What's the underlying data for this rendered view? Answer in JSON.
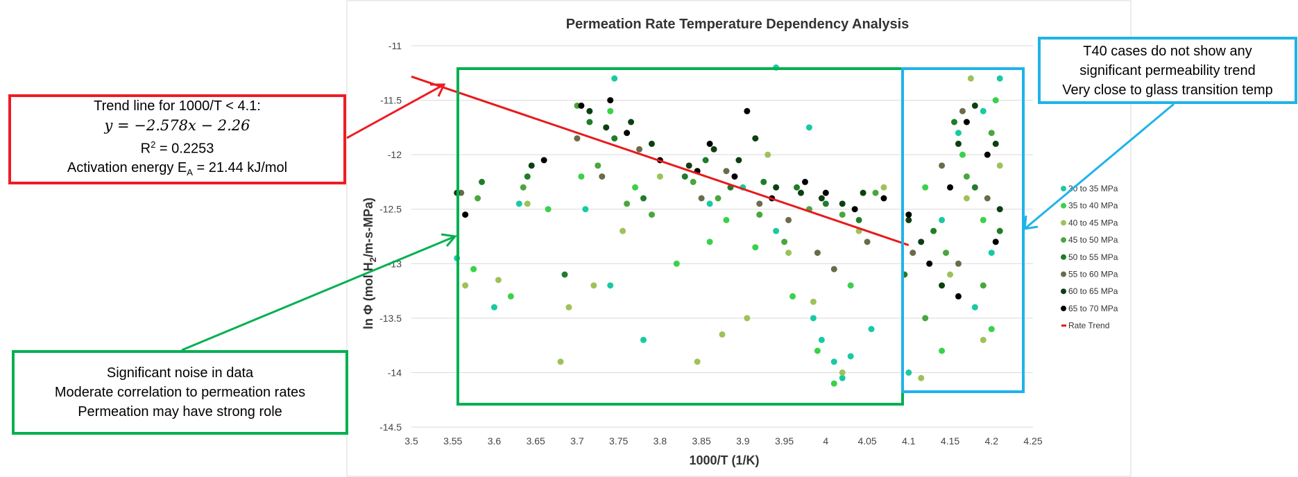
{
  "chart_data": {
    "type": "scatter",
    "title": "Permeation Rate Temperature Dependency Analysis",
    "xlabel": "1000/T (1/K)",
    "ylabel": "ln Φ (mol H2/m-s-MPa)",
    "xlim": [
      3.5,
      4.25
    ],
    "ylim": [
      -14.5,
      -11
    ],
    "x_ticks": [
      "3.5",
      "3.55",
      "3.6",
      "3.65",
      "3.7",
      "3.75",
      "3.8",
      "3.85",
      "3.9",
      "3.95",
      "4",
      "4.05",
      "4.1",
      "4.15",
      "4.2",
      "4.25"
    ],
    "y_ticks": [
      "-11",
      "-11.5",
      "-12",
      "-12.5",
      "-13",
      "-13.5",
      "-14",
      "-14.5"
    ],
    "grid": "horizontal",
    "legend_position": "right",
    "series": [
      {
        "name": "30 to 35 MPa",
        "color": "#19c9a3",
        "points": [
          [
            3.555,
            -12.95
          ],
          [
            3.6,
            -13.4
          ],
          [
            3.63,
            -12.45
          ],
          [
            3.71,
            -12.5
          ],
          [
            3.745,
            -11.3
          ],
          [
            3.74,
            -13.2
          ],
          [
            3.78,
            -13.7
          ],
          [
            3.86,
            -12.45
          ],
          [
            3.9,
            -12.3
          ],
          [
            3.94,
            -12.7
          ],
          [
            3.985,
            -13.5
          ],
          [
            3.995,
            -13.7
          ],
          [
            4.01,
            -13.9
          ],
          [
            4.02,
            -14.05
          ],
          [
            4.03,
            -13.85
          ],
          [
            4.055,
            -13.6
          ],
          [
            4.1,
            -14.0
          ],
          [
            4.14,
            -12.6
          ],
          [
            4.16,
            -11.8
          ],
          [
            4.19,
            -11.6
          ],
          [
            4.2,
            -12.9
          ],
          [
            4.21,
            -11.3
          ],
          [
            4.18,
            -13.4
          ],
          [
            3.98,
            -11.75
          ],
          [
            3.94,
            -11.2
          ]
        ]
      },
      {
        "name": "35 to 40 MPa",
        "color": "#3ad14a",
        "points": [
          [
            3.575,
            -13.05
          ],
          [
            3.62,
            -13.3
          ],
          [
            3.665,
            -12.5
          ],
          [
            3.705,
            -12.2
          ],
          [
            3.74,
            -11.6
          ],
          [
            3.77,
            -12.3
          ],
          [
            3.82,
            -13.0
          ],
          [
            3.86,
            -12.8
          ],
          [
            3.88,
            -12.6
          ],
          [
            3.915,
            -12.85
          ],
          [
            3.96,
            -13.3
          ],
          [
            3.99,
            -13.8
          ],
          [
            4.01,
            -14.1
          ],
          [
            4.03,
            -13.2
          ],
          [
            4.12,
            -12.3
          ],
          [
            4.14,
            -13.8
          ],
          [
            4.165,
            -12.0
          ],
          [
            4.19,
            -12.6
          ],
          [
            4.205,
            -11.5
          ],
          [
            4.2,
            -13.6
          ]
        ]
      },
      {
        "name": "40 to 45 MPa",
        "color": "#9dc25a",
        "points": [
          [
            3.565,
            -13.2
          ],
          [
            3.605,
            -13.15
          ],
          [
            3.64,
            -12.45
          ],
          [
            3.68,
            -13.9
          ],
          [
            3.69,
            -13.4
          ],
          [
            3.72,
            -13.2
          ],
          [
            3.755,
            -12.7
          ],
          [
            3.8,
            -12.2
          ],
          [
            3.845,
            -13.9
          ],
          [
            3.875,
            -13.65
          ],
          [
            3.905,
            -13.5
          ],
          [
            3.93,
            -12.0
          ],
          [
            3.955,
            -12.9
          ],
          [
            3.985,
            -13.35
          ],
          [
            4.02,
            -14.0
          ],
          [
            4.04,
            -12.7
          ],
          [
            4.07,
            -12.3
          ],
          [
            4.115,
            -14.05
          ],
          [
            4.15,
            -13.1
          ],
          [
            4.17,
            -12.4
          ],
          [
            4.19,
            -13.7
          ],
          [
            4.21,
            -12.1
          ],
          [
            4.175,
            -11.3
          ]
        ]
      },
      {
        "name": "45 to 50 MPa",
        "color": "#4aa63e",
        "points": [
          [
            3.58,
            -12.4
          ],
          [
            3.635,
            -12.3
          ],
          [
            3.7,
            -11.55
          ],
          [
            3.725,
            -12.1
          ],
          [
            3.76,
            -12.45
          ],
          [
            3.79,
            -12.55
          ],
          [
            3.84,
            -12.25
          ],
          [
            3.87,
            -12.4
          ],
          [
            3.92,
            -12.55
          ],
          [
            3.95,
            -12.8
          ],
          [
            3.98,
            -12.5
          ],
          [
            4.02,
            -12.55
          ],
          [
            4.06,
            -12.35
          ],
          [
            4.12,
            -13.5
          ],
          [
            4.145,
            -12.9
          ],
          [
            4.17,
            -12.2
          ],
          [
            4.2,
            -11.8
          ],
          [
            4.19,
            -13.2
          ]
        ]
      },
      {
        "name": "50 to 55 MPa",
        "color": "#1f7d2a",
        "points": [
          [
            3.585,
            -12.25
          ],
          [
            3.64,
            -12.2
          ],
          [
            3.685,
            -13.1
          ],
          [
            3.715,
            -11.7
          ],
          [
            3.745,
            -11.85
          ],
          [
            3.78,
            -12.4
          ],
          [
            3.83,
            -12.2
          ],
          [
            3.855,
            -12.05
          ],
          [
            3.885,
            -12.3
          ],
          [
            3.925,
            -12.25
          ],
          [
            3.965,
            -12.3
          ],
          [
            4.0,
            -12.45
          ],
          [
            4.04,
            -12.6
          ],
          [
            4.095,
            -13.1
          ],
          [
            4.13,
            -12.7
          ],
          [
            4.155,
            -11.7
          ],
          [
            4.18,
            -12.3
          ],
          [
            4.21,
            -12.7
          ]
        ]
      },
      {
        "name": "55 to 60 MPa",
        "color": "#6b6b4b",
        "points": [
          [
            3.56,
            -12.35
          ],
          [
            3.7,
            -11.85
          ],
          [
            3.73,
            -12.2
          ],
          [
            3.775,
            -11.95
          ],
          [
            3.85,
            -12.4
          ],
          [
            3.88,
            -12.15
          ],
          [
            3.92,
            -12.45
          ],
          [
            3.955,
            -12.6
          ],
          [
            3.99,
            -12.9
          ],
          [
            4.01,
            -13.05
          ],
          [
            4.05,
            -12.8
          ],
          [
            4.105,
            -12.9
          ],
          [
            4.14,
            -12.1
          ],
          [
            4.165,
            -11.6
          ],
          [
            4.195,
            -12.4
          ],
          [
            4.16,
            -13.0
          ]
        ]
      },
      {
        "name": "60 to 65 MPa",
        "color": "#0d3f12",
        "points": [
          [
            3.555,
            -12.35
          ],
          [
            3.645,
            -12.1
          ],
          [
            3.715,
            -11.6
          ],
          [
            3.735,
            -11.75
          ],
          [
            3.765,
            -11.7
          ],
          [
            3.79,
            -11.9
          ],
          [
            3.835,
            -12.1
          ],
          [
            3.865,
            -11.95
          ],
          [
            3.895,
            -12.05
          ],
          [
            3.915,
            -11.85
          ],
          [
            3.94,
            -12.3
          ],
          [
            3.97,
            -12.35
          ],
          [
            3.995,
            -12.4
          ],
          [
            4.02,
            -12.45
          ],
          [
            4.045,
            -12.35
          ],
          [
            4.1,
            -12.6
          ],
          [
            4.115,
            -12.8
          ],
          [
            4.14,
            -13.2
          ],
          [
            4.16,
            -11.9
          ],
          [
            4.18,
            -11.55
          ],
          [
            4.205,
            -11.9
          ],
          [
            4.21,
            -12.5
          ]
        ]
      },
      {
        "name": "65 to 70 MPa",
        "color": "#000000",
        "points": [
          [
            3.565,
            -12.55
          ],
          [
            3.66,
            -12.05
          ],
          [
            3.705,
            -11.55
          ],
          [
            3.74,
            -11.5
          ],
          [
            3.76,
            -11.8
          ],
          [
            3.8,
            -12.05
          ],
          [
            3.845,
            -12.15
          ],
          [
            3.86,
            -11.9
          ],
          [
            3.89,
            -12.2
          ],
          [
            3.905,
            -11.6
          ],
          [
            3.935,
            -12.4
          ],
          [
            3.975,
            -12.25
          ],
          [
            4.0,
            -12.35
          ],
          [
            4.035,
            -12.5
          ],
          [
            4.07,
            -12.4
          ],
          [
            4.1,
            -12.55
          ],
          [
            4.125,
            -13.0
          ],
          [
            4.15,
            -12.3
          ],
          [
            4.17,
            -11.7
          ],
          [
            4.195,
            -12.0
          ],
          [
            4.205,
            -12.8
          ],
          [
            4.16,
            -13.3
          ]
        ]
      },
      {
        "name": "Rate Trend",
        "color": "#e8191b",
        "type": "line",
        "slope": -2.578,
        "intercept": -2.26,
        "x_range": [
          3.5,
          4.1
        ]
      }
    ],
    "annotations": {
      "red": {
        "line1": "Trend line for 1000/T < 4.1:",
        "equation": "y = −2.578x − 2.26",
        "r2_label": "R",
        "r2_sup": "2",
        "r2_value": " = 0.2253",
        "ea_label": "Activation energy E",
        "ea_sub": "A",
        "ea_value": " = 21.44 kJ/mol",
        "color": "#ee1c24"
      },
      "green": {
        "lines": [
          "Significant noise in data",
          "Moderate correlation to permeation rates",
          "Permeation may have strong role"
        ],
        "color": "#00b050"
      },
      "blue": {
        "lines": [
          "T40 cases do not show any",
          "significant permeability trend",
          "Very close to glass transition temp"
        ],
        "color": "#1fb3e8"
      }
    }
  }
}
